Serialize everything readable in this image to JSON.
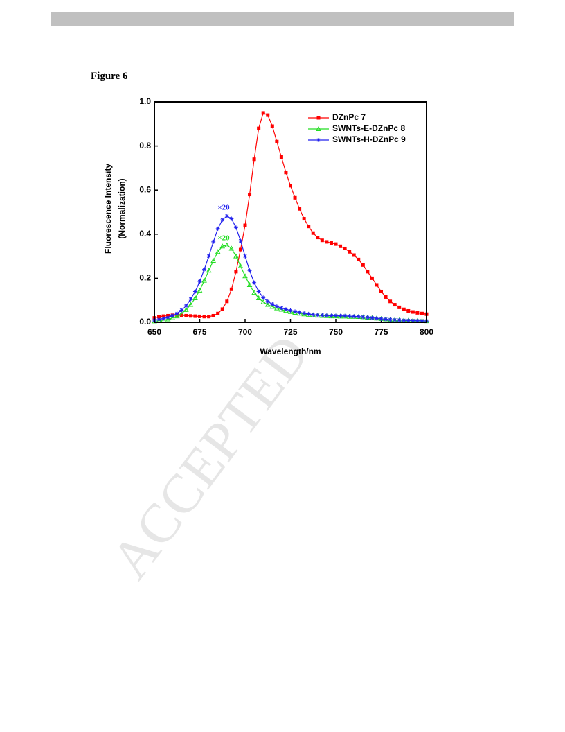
{
  "figure_label": "Figure 6",
  "watermark": "ACCEPTED",
  "chart_data": {
    "type": "line",
    "xlabel": "Wavelength/nm",
    "ylabel": [
      "Fluorescence Intensity",
      "(Normalization)"
    ],
    "xlim": [
      650,
      800
    ],
    "ylim": [
      0,
      1
    ],
    "xticks": [
      650,
      675,
      700,
      725,
      750,
      775,
      800
    ],
    "yticks": [
      {
        "value": 0,
        "label": "0.0"
      },
      {
        "value": 0.2,
        "label": "0.2"
      },
      {
        "value": 0.4,
        "label": "0.4"
      },
      {
        "value": 0.6,
        "label": "0.6"
      },
      {
        "value": 0.8,
        "label": "0.8"
      },
      {
        "value": 1,
        "label": "1.0"
      }
    ],
    "legend": "upper right",
    "x": [
      650,
      652.5,
      655,
      657.5,
      660,
      662.5,
      665,
      667.5,
      670,
      672.5,
      675,
      677.5,
      680,
      682.5,
      685,
      687.5,
      690,
      692.5,
      695,
      697.5,
      700,
      702.5,
      705,
      707.5,
      710,
      712.5,
      715,
      717.5,
      720,
      722.5,
      725,
      727.5,
      730,
      732.5,
      735,
      737.5,
      740,
      742.5,
      745,
      747.5,
      750,
      752.5,
      755,
      757.5,
      760,
      762.5,
      765,
      767.5,
      770,
      772.5,
      775,
      777.5,
      780,
      782.5,
      785,
      787.5,
      790,
      792.5,
      795,
      797.5,
      800
    ],
    "series": [
      {
        "name": "DZnPc 7",
        "color": "#ff0000",
        "marker": "square",
        "values": [
          0.02,
          0.025,
          0.028,
          0.03,
          0.032,
          0.032,
          0.031,
          0.03,
          0.029,
          0.028,
          0.027,
          0.026,
          0.026,
          0.03,
          0.04,
          0.06,
          0.095,
          0.15,
          0.23,
          0.33,
          0.44,
          0.58,
          0.74,
          0.88,
          0.95,
          0.94,
          0.89,
          0.82,
          0.75,
          0.68,
          0.62,
          0.565,
          0.515,
          0.47,
          0.435,
          0.405,
          0.385,
          0.372,
          0.365,
          0.36,
          0.355,
          0.345,
          0.335,
          0.32,
          0.305,
          0.285,
          0.26,
          0.23,
          0.2,
          0.17,
          0.14,
          0.115,
          0.095,
          0.08,
          0.068,
          0.059,
          0.052,
          0.047,
          0.043,
          0.04,
          0.037
        ]
      },
      {
        "name": "SWNTs-E-DZnPc 8",
        "color": "#22dd22",
        "marker": "triangle",
        "values": [
          0.005,
          0.007,
          0.01,
          0.014,
          0.02,
          0.028,
          0.04,
          0.057,
          0.08,
          0.11,
          0.145,
          0.19,
          0.235,
          0.28,
          0.32,
          0.345,
          0.35,
          0.335,
          0.3,
          0.255,
          0.21,
          0.17,
          0.135,
          0.11,
          0.092,
          0.08,
          0.071,
          0.064,
          0.058,
          0.053,
          0.048,
          0.044,
          0.04,
          0.037,
          0.035,
          0.033,
          0.031,
          0.03,
          0.029,
          0.028,
          0.028,
          0.027,
          0.027,
          0.026,
          0.026,
          0.025,
          0.024,
          0.022,
          0.02,
          0.018,
          0.016,
          0.014,
          0.012,
          0.011,
          0.01,
          0.009,
          0.008,
          0.008,
          0.007,
          0.007,
          0.006
        ]
      },
      {
        "name": "SWNTs-H-DZnPc 9",
        "color": "#2222ee",
        "marker": "star",
        "values": [
          0.01,
          0.013,
          0.017,
          0.022,
          0.03,
          0.04,
          0.055,
          0.075,
          0.105,
          0.14,
          0.185,
          0.24,
          0.3,
          0.365,
          0.425,
          0.465,
          0.482,
          0.47,
          0.43,
          0.37,
          0.3,
          0.235,
          0.18,
          0.14,
          0.112,
          0.095,
          0.082,
          0.072,
          0.065,
          0.059,
          0.054,
          0.049,
          0.045,
          0.041,
          0.038,
          0.035,
          0.033,
          0.032,
          0.031,
          0.03,
          0.03,
          0.029,
          0.029,
          0.028,
          0.027,
          0.026,
          0.024,
          0.022,
          0.02,
          0.018,
          0.016,
          0.014,
          0.012,
          0.011,
          0.01,
          0.009,
          0.008,
          0.008,
          0.007,
          0.007,
          0.006
        ]
      }
    ],
    "annotations": [
      {
        "text": "×20",
        "color": "#2222ee"
      },
      {
        "text": "×20",
        "color": "#22dd22"
      }
    ]
  }
}
